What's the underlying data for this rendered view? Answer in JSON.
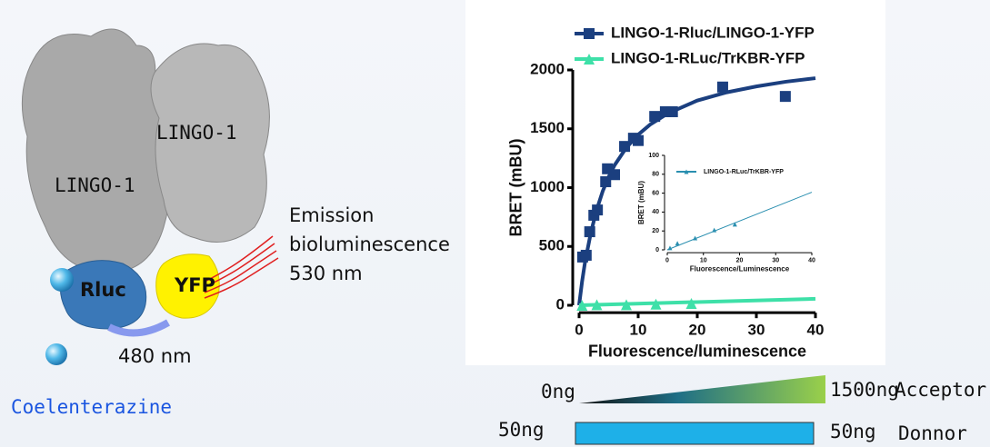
{
  "diagram": {
    "protein_left": "LINGO-1",
    "protein_right": "LINGO-1",
    "donor": "Rluc",
    "acceptor": "YFP",
    "emission": [
      "Emission",
      "bioluminescence",
      "530 nm"
    ],
    "excitation": "480 nm",
    "substrate": "Coelenterazine"
  },
  "gradient": {
    "acceptor_low": "0ng",
    "acceptor_high": "1500ng",
    "acceptor_label": "Acceptor",
    "donor_low": "50ng",
    "donor_high": "50ng",
    "donor_label": "Donnor"
  },
  "chart_data": [
    {
      "type": "scatter",
      "xlabel": "Fluorescence/luminescence",
      "ylabel": "BRET (mBU)",
      "xlim": [
        0,
        40
      ],
      "ylim": [
        0,
        2000
      ],
      "xticks": [
        0,
        10,
        20,
        30,
        40
      ],
      "yticks": [
        0,
        500,
        1000,
        1500,
        2000
      ],
      "legend": "top",
      "series": [
        {
          "name": "LINGO-1-Rluc/LINGO-1-YFP",
          "color": "#1b3f7f",
          "marker": "square",
          "x": [
            0.6,
            1.2,
            1.8,
            2.5,
            3.1,
            4.5,
            4.8,
            6,
            7.7,
            9.2,
            10,
            12.8,
            14.6,
            15.8,
            24.3,
            34.9
          ],
          "values": [
            410,
            425,
            625,
            765,
            810,
            1050,
            1160,
            1110,
            1350,
            1420,
            1400,
            1605,
            1645,
            1645,
            1855,
            1775
          ],
          "fit": {
            "x": [
              0,
              0.5,
              1,
              2,
              3,
              4,
              5,
              6,
              8,
              10,
              12,
              15,
              20,
              25,
              30,
              35,
              40
            ],
            "values": [
              0,
              200,
              365,
              620,
              815,
              970,
              1090,
              1190,
              1340,
              1450,
              1535,
              1630,
              1740,
              1810,
              1860,
              1900,
              1930
            ]
          }
        },
        {
          "name": "LINGO-1-RLuc/TrKBR-YFP",
          "color": "#3ee0a8",
          "marker": "triangle",
          "x": [
            0.5,
            3,
            8,
            13,
            19
          ],
          "values": [
            0,
            5,
            5,
            10,
            15
          ],
          "fit": {
            "x": [
              0,
              40
            ],
            "values": [
              0,
              55
            ]
          }
        }
      ]
    },
    {
      "type": "scatter",
      "xlabel": "Fluorescence/Luminescence",
      "ylabel": "BRET (mBU)",
      "xlim": [
        0,
        40
      ],
      "ylim": [
        0,
        100
      ],
      "xticks": [
        0,
        10,
        20,
        30,
        40
      ],
      "yticks": [
        0,
        20,
        40,
        60,
        80,
        100
      ],
      "legend": "upper left",
      "series": [
        {
          "name": "LINGO-1-RLuc/TrKBR-YFP",
          "color": "#2a8fb0",
          "marker": "triangle",
          "x": [
            0.75,
            2.8,
            7.7,
            13,
            18.7
          ],
          "values": [
            2,
            7,
            12.5,
            21,
            27
          ],
          "fit": {
            "x": [
              0,
              40
            ],
            "values": [
              0,
              61
            ]
          }
        }
      ]
    }
  ]
}
